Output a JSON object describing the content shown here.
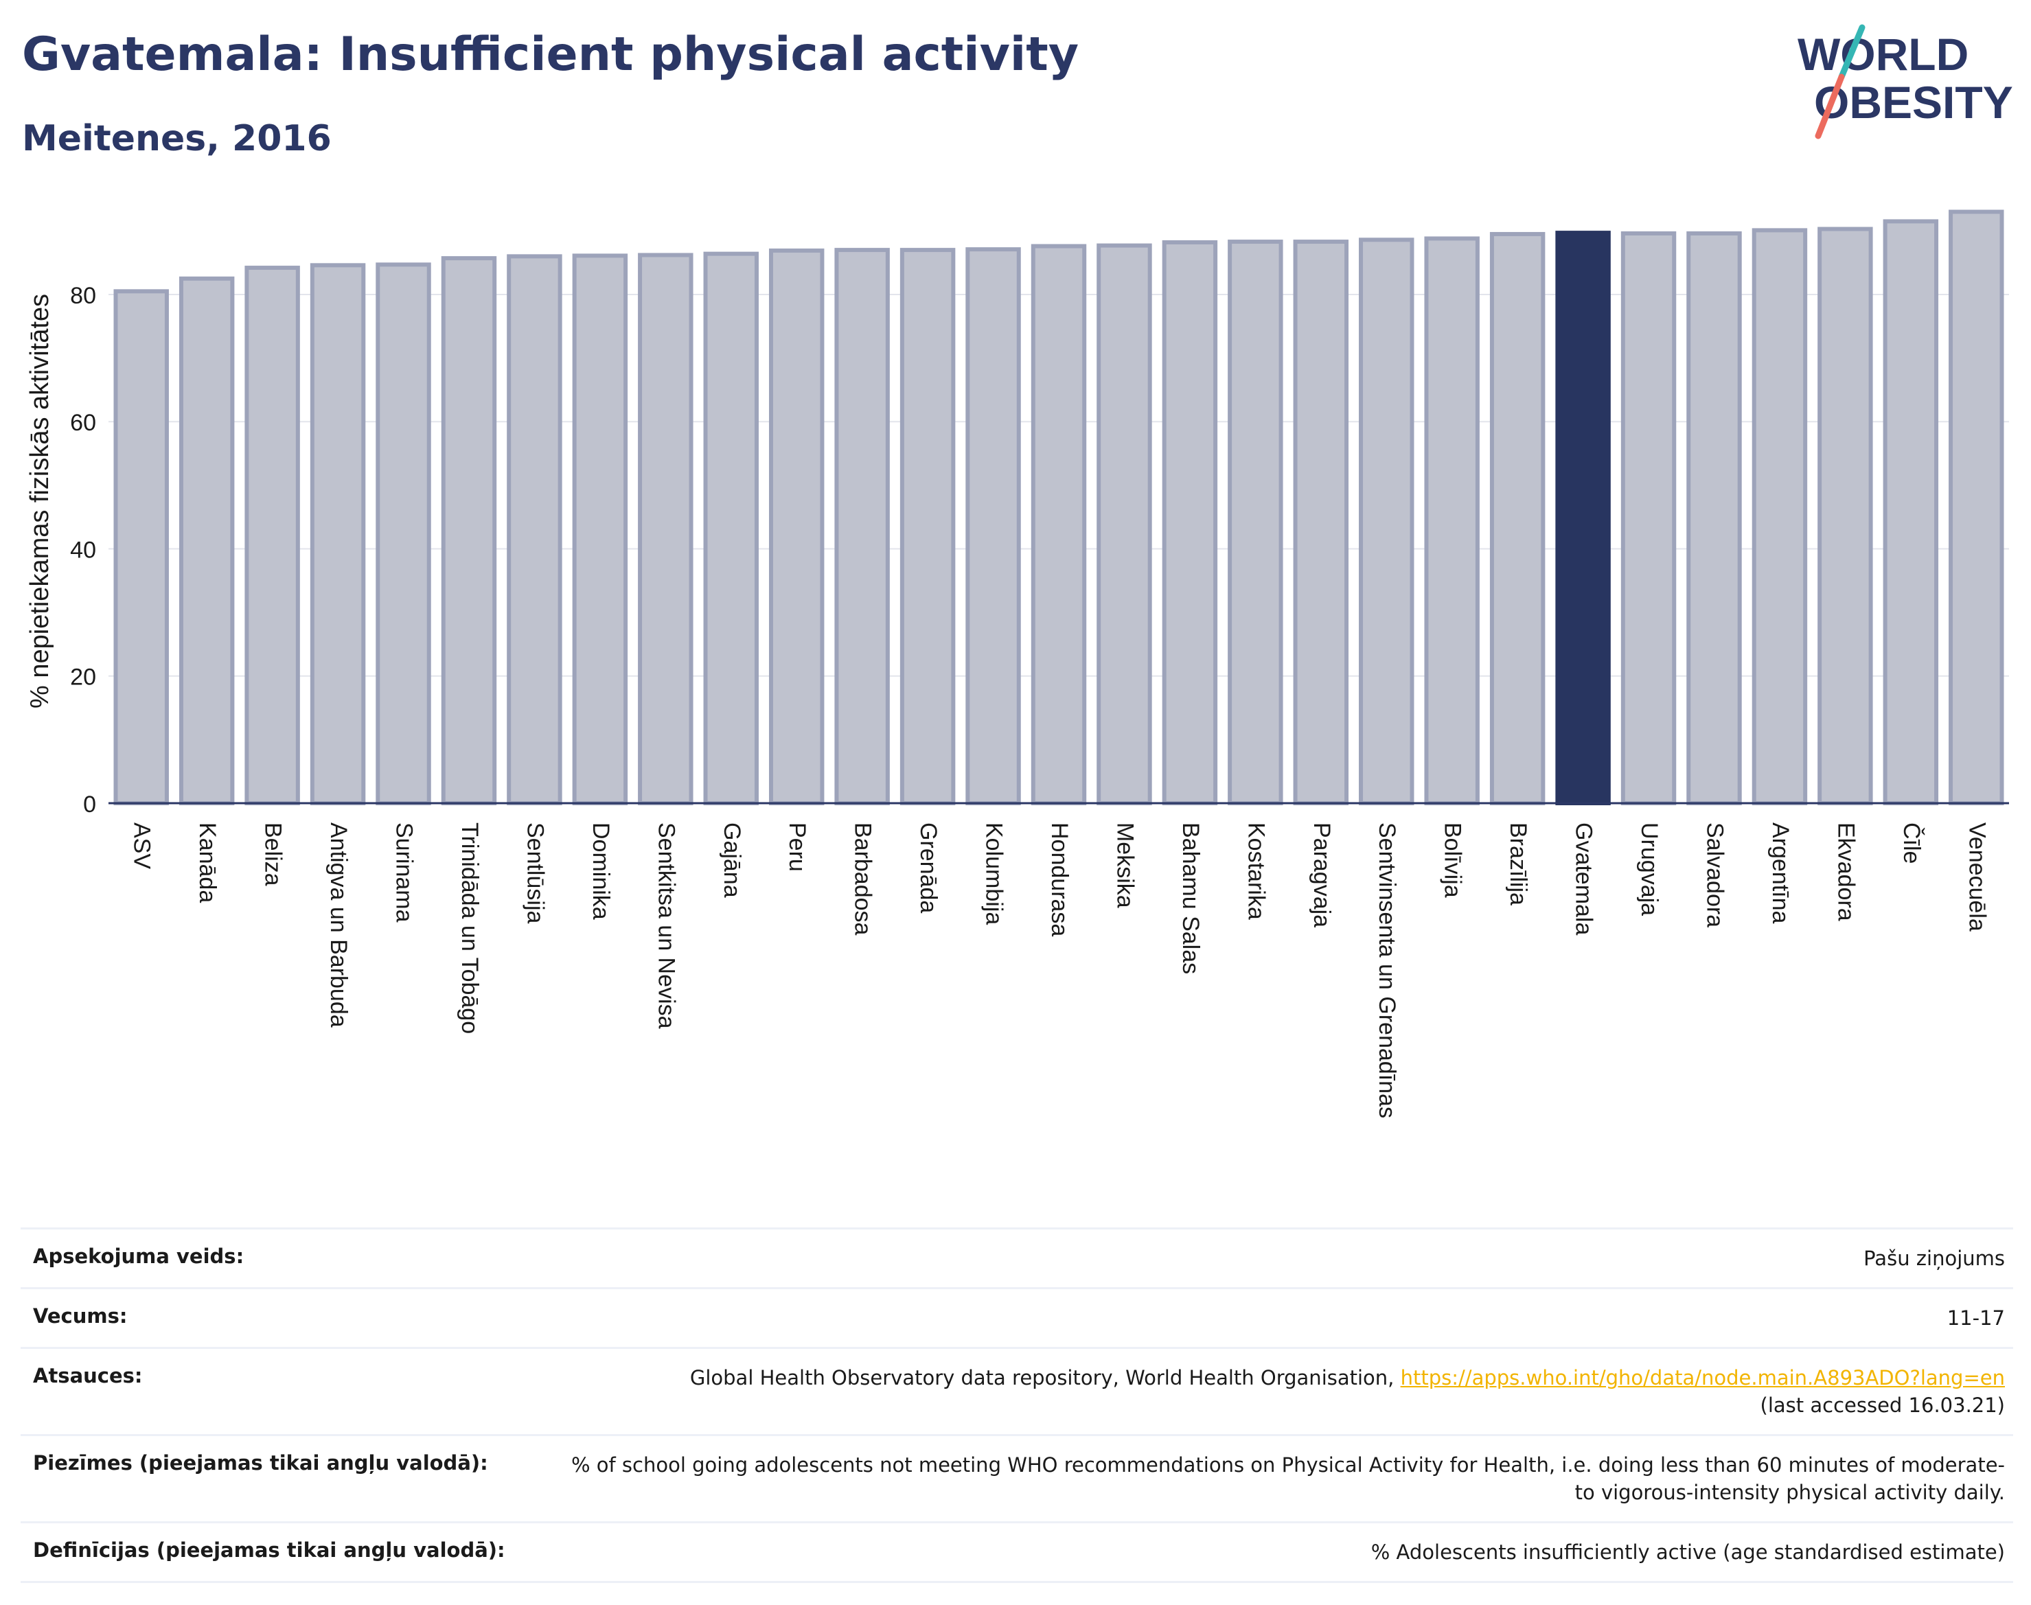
{
  "header": {
    "title": "Gvatemala: Insufficient physical activity",
    "subtitle": "Meitenes, 2016"
  },
  "logo": {
    "line1": "WORLD",
    "line2": "OBESITY"
  },
  "chart_data": {
    "type": "bar",
    "ylabel": "% nepietiekamas fiziskās aktivitātes",
    "xlabel": "",
    "ylim": [
      0,
      95
    ],
    "yticks": [
      0,
      20,
      40,
      60,
      80
    ],
    "grid": true,
    "highlight": "Gvatemala",
    "colors": {
      "bar": "#bfc2ce",
      "bar_edge": "#9da3ba",
      "highlight": "#283560",
      "grid": "#e3e5ec",
      "axis": "#2b3765"
    },
    "categories": [
      "ASV",
      "Kanāda",
      "Beliza",
      "Antigva un Barbuda",
      "Surinama",
      "Trinidāda un Tobāgo",
      "Sentlūsija",
      "Dominika",
      "Sentkitsa un Nevisa",
      "Gajāna",
      "Peru",
      "Barbadosa",
      "Grenāda",
      "Kolumbija",
      "Hondurasa",
      "Meksika",
      "Bahamu Salas",
      "Kostarika",
      "Paragvaja",
      "Sentvinsenta un Grenadīnas",
      "Bolīvija",
      "Brazīlija",
      "Gvatemala",
      "Urugvaja",
      "Salvadora",
      "Argentīna",
      "Ekvadora",
      "Čīle",
      "Venecuēla"
    ],
    "values": [
      80.5,
      82.5,
      84.2,
      84.6,
      84.7,
      85.7,
      86.0,
      86.1,
      86.2,
      86.4,
      86.9,
      87.0,
      87.0,
      87.1,
      87.6,
      87.7,
      88.2,
      88.3,
      88.3,
      88.6,
      88.8,
      89.5,
      89.7,
      89.6,
      89.6,
      90.1,
      90.3,
      91.5,
      93.0
    ]
  },
  "info": [
    {
      "label": "Apsekojuma veids:",
      "value": "Pašu ziņojums"
    },
    {
      "label": "Vecums:",
      "value": "11-17"
    },
    {
      "label": "Atsauces:",
      "value": "Global Health Observatory data repository, World Health Organisation, ",
      "link": "https://apps.who.int/gho/data/node.main.A893ADO?lang=en",
      "value2": "(last accessed 16.03.21)"
    },
    {
      "label": "Piezīmes (pieejamas tikai angļu valodā):",
      "value": "% of school going adolescents not meeting WHO recommendations on Physical Activity for Health, i.e. doing less than 60 minutes of moderate- to vigorous-intensity physical activity daily."
    },
    {
      "label": "Definīcijas (pieejamas tikai angļu valodā):",
      "value": "% Adolescents insufficiently active (age standardised estimate)"
    }
  ]
}
